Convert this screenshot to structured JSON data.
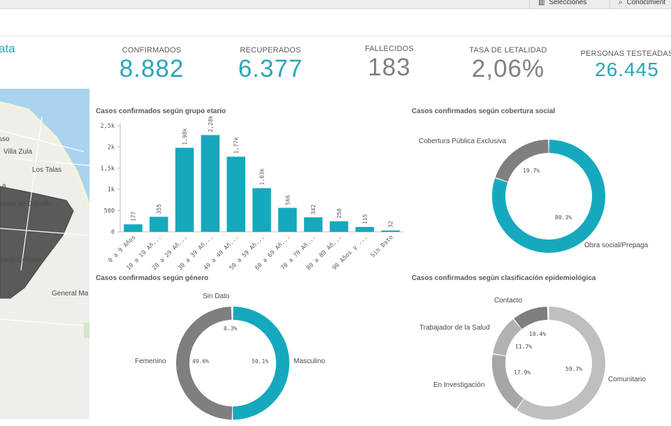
{
  "topbar": {
    "selections_label": "Selecciones",
    "insights_label": "Conocimient"
  },
  "app": {
    "title_fragment": "ata"
  },
  "kpis": [
    {
      "label": "CONFIRMADOS",
      "value": "8.882",
      "color": "#2ba5b8"
    },
    {
      "label": "RECUPERADOS",
      "value": "6.377",
      "color": "#2ba5b8"
    },
    {
      "label": "FALLECIDOS",
      "value": "183",
      "color": "#808080"
    },
    {
      "label": "TASA DE LETALIDAD",
      "value": "2,06%",
      "color": "#808080"
    },
    {
      "label": "PERSONAS TESTEADAS",
      "value": "26.445",
      "color": "#2ba5b8"
    }
  ],
  "map": {
    "labels": [
      "sso",
      "Villa Zula",
      "Los Talas",
      "a",
      "omas de Gonello",
      "nacio Correas",
      "General Ma"
    ]
  },
  "colors": {
    "teal": "#16a9be",
    "gray_dark": "#7f7f7f",
    "gray_mid": "#a6a6a6",
    "gray_light": "#c4c4c4"
  },
  "chart_data": [
    {
      "type": "bar",
      "title": "Casos confirmados según grupo etario",
      "categories": [
        "0 a 9 Años",
        "10 a 19 Añ...",
        "20 a 29 Añ...",
        "30 a 39 Añ...",
        "40 a 49 Añ...",
        "50 a 59 Añ...",
        "60 a 69 Añ...",
        "70 a 79 Añ...",
        "80 a 89 Añ...",
        "90 Años y ...",
        "Sin Dato"
      ],
      "values": [
        177,
        355,
        1980,
        2280,
        1770,
        1030,
        566,
        342,
        250,
        115,
        32
      ],
      "value_labels": [
        "177",
        "355",
        "1,98k",
        "2,28k",
        "1,77k",
        "1,03k",
        "566",
        "342",
        "250",
        "115",
        "32"
      ],
      "ylim": [
        0,
        2500
      ],
      "yticks": [
        0,
        500,
        1000,
        1500,
        2000,
        2500
      ],
      "ytick_labels": [
        "0",
        "500",
        "1k",
        "1,5k",
        "2k",
        "2,5k"
      ],
      "grid": false
    },
    {
      "type": "pie",
      "title": "Casos confirmados según cobertura social",
      "slices": [
        {
          "label": "Obra social/Prepaga",
          "pct": 80.3,
          "pct_label": "80.3%",
          "color": "#16a9be"
        },
        {
          "label": "Cobertura Pública Exclusiva",
          "pct": 19.7,
          "pct_label": "19.7%",
          "color": "#7f7f7f"
        }
      ]
    },
    {
      "type": "pie",
      "title": "Casos confirmados según género",
      "slices": [
        {
          "label": "Masculino",
          "pct": 50.1,
          "pct_label": "50.1%",
          "color": "#16a9be"
        },
        {
          "label": "Femenino",
          "pct": 49.6,
          "pct_label": "49.6%",
          "color": "#7f7f7f"
        },
        {
          "label": "Sin Dato",
          "pct": 0.3,
          "pct_label": "0.3%",
          "color": "#c4c4c4"
        }
      ]
    },
    {
      "type": "pie",
      "title": "Casos confirmados según clasificación epidemiológica",
      "slices": [
        {
          "label": "Comunitario",
          "pct": 59.7,
          "pct_label": "59.7%",
          "color": "#bfbfbf"
        },
        {
          "label": "En Investigación",
          "pct": 17.9,
          "pct_label": "17.9%",
          "color": "#a6a6a6"
        },
        {
          "label": "Trabajador de la Salud",
          "pct": 11.7,
          "pct_label": "11.7%",
          "color": "#b2b2b2"
        },
        {
          "label": "Contacto",
          "pct": 10.4,
          "pct_label": "10.4%",
          "color": "#7f7f7f"
        }
      ]
    }
  ]
}
